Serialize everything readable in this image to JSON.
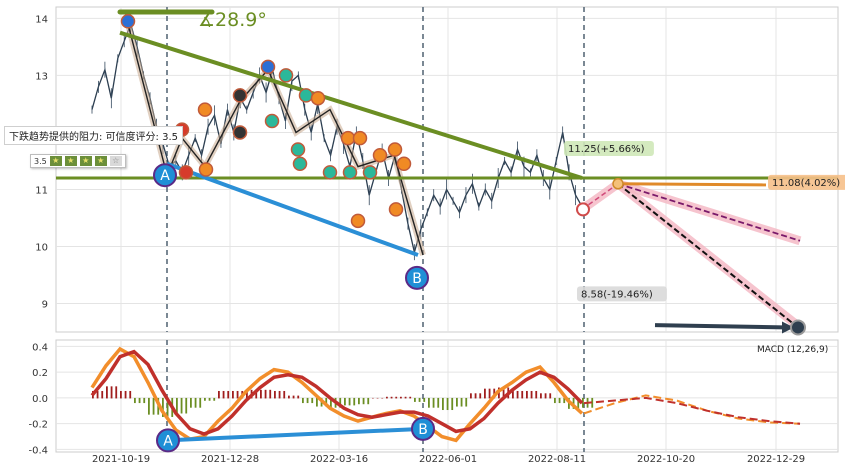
{
  "chart_data": [
    {
      "type": "line",
      "panel": "price",
      "x_ticks": [
        "2021-10-19",
        "2021-12-28",
        "2022-03-16",
        "2022-06-01",
        "2022-08-11",
        "2022-10-20",
        "2022-12-29"
      ],
      "y_ticks": [
        9,
        10,
        11,
        12,
        13,
        14
      ],
      "ylim": [
        8.5,
        14.2
      ],
      "title_annotation": "∡28.9°",
      "note": "下跌趋势提供的阻力: 可信度评分: 3.5",
      "rating": {
        "score": "3.5",
        "stars": 4,
        "max": 5
      },
      "points": {
        "A": {
          "label": "A",
          "value": 11.25
        },
        "B": {
          "label": "B",
          "value": 9.85
        }
      },
      "annotations": [
        {
          "text": "11.25(+5.66%)",
          "value": 11.25,
          "color": "#cfe8b8"
        },
        {
          "text": "11.08(4.02%)",
          "value": 11.08,
          "color": "#f6c08a"
        },
        {
          "text": "8.58(-19.46%)",
          "value": 8.58,
          "color": "#d9d9d9"
        }
      ],
      "lines": {
        "downtrend_resistance": {
          "from": 13.75,
          "to": 11.2,
          "color": "#6b8e23"
        },
        "horizontal_support": {
          "value": 11.2,
          "color": "#6b8e23"
        },
        "lower_trend": {
          "from": 11.45,
          "to": 9.85,
          "color": "#2b8fd6"
        },
        "forecast_up": {
          "from": 10.65,
          "to": 11.08,
          "color": "#e08a2a"
        },
        "forecast_mid": {
          "from": 11.1,
          "to": 10.1,
          "color": "#7a1a6a"
        },
        "forecast_down": {
          "from": 11.1,
          "to": 8.58,
          "color": "#111111"
        },
        "projection_arrow": {
          "from": 8.58,
          "to": 8.58,
          "color": "#2f3f4f"
        }
      },
      "series": [
        {
          "values": [
            12.4,
            12.8,
            13.1,
            12.6,
            13.3,
            13.6,
            13.9,
            13.5,
            13.0,
            12.6,
            12.1,
            11.8,
            11.4,
            11.5,
            11.3,
            11.6,
            11.9,
            11.6,
            12.1,
            12.3,
            11.8,
            12.4,
            12.0,
            12.6,
            12.4,
            12.7,
            13.0,
            12.7,
            13.1,
            12.6,
            12.2,
            12.9,
            13.0,
            12.4,
            12.0,
            12.5,
            11.9,
            11.6,
            12.1,
            11.8,
            11.4,
            12.0,
            11.5,
            10.9,
            11.3,
            11.7,
            11.2,
            11.6,
            11.0,
            10.4,
            9.9,
            10.3,
            10.6,
            10.9,
            10.7,
            11.0,
            10.8,
            10.6,
            10.9,
            11.1,
            10.7,
            11.0,
            10.8,
            11.2,
            11.5,
            11.3,
            11.7,
            11.4,
            11.3,
            11.6,
            11.2,
            11.0,
            11.5,
            12.0,
            11.3,
            10.9,
            10.7
          ]
        }
      ]
    },
    {
      "type": "bar",
      "panel": "macd",
      "title": "MACD (12,26,9)",
      "y_ticks": [
        "0.4",
        "0.2",
        "0.0",
        "-0.2",
        "-0.4"
      ],
      "ylim": [
        -0.42,
        0.45
      ],
      "points": {
        "A": {
          "label": "A",
          "value": -0.33
        },
        "B": {
          "label": "B",
          "value": -0.24
        }
      },
      "series": [
        {
          "color": "#f28e2b",
          "values": [
            0.08,
            0.25,
            0.38,
            0.32,
            0.12,
            -0.1,
            -0.25,
            -0.32,
            -0.3,
            -0.18,
            -0.08,
            0.05,
            0.15,
            0.22,
            0.2,
            0.12,
            0.02,
            -0.08,
            -0.14,
            -0.18,
            -0.15,
            -0.12,
            -0.1,
            -0.14,
            -0.22,
            -0.3,
            -0.33,
            -0.2,
            -0.08,
            0.05,
            0.12,
            0.2,
            0.24,
            0.12,
            -0.02,
            -0.12
          ]
        },
        {
          "color": "#c0302b",
          "values": [
            0.02,
            0.15,
            0.32,
            0.36,
            0.26,
            0.06,
            -0.12,
            -0.24,
            -0.28,
            -0.24,
            -0.14,
            -0.02,
            0.08,
            0.16,
            0.18,
            0.16,
            0.09,
            0.0,
            -0.08,
            -0.13,
            -0.15,
            -0.13,
            -0.11,
            -0.11,
            -0.14,
            -0.2,
            -0.26,
            -0.24,
            -0.16,
            -0.04,
            0.06,
            0.14,
            0.2,
            0.16,
            0.07,
            -0.04
          ]
        }
      ],
      "forecast": {
        "orange": [
          -0.12,
          -0.04,
          0.02,
          -0.02,
          -0.1,
          -0.16,
          -0.19,
          -0.2
        ],
        "red": [
          -0.04,
          -0.02,
          0.0,
          -0.04,
          -0.1,
          -0.15,
          -0.18,
          -0.2
        ]
      }
    }
  ]
}
